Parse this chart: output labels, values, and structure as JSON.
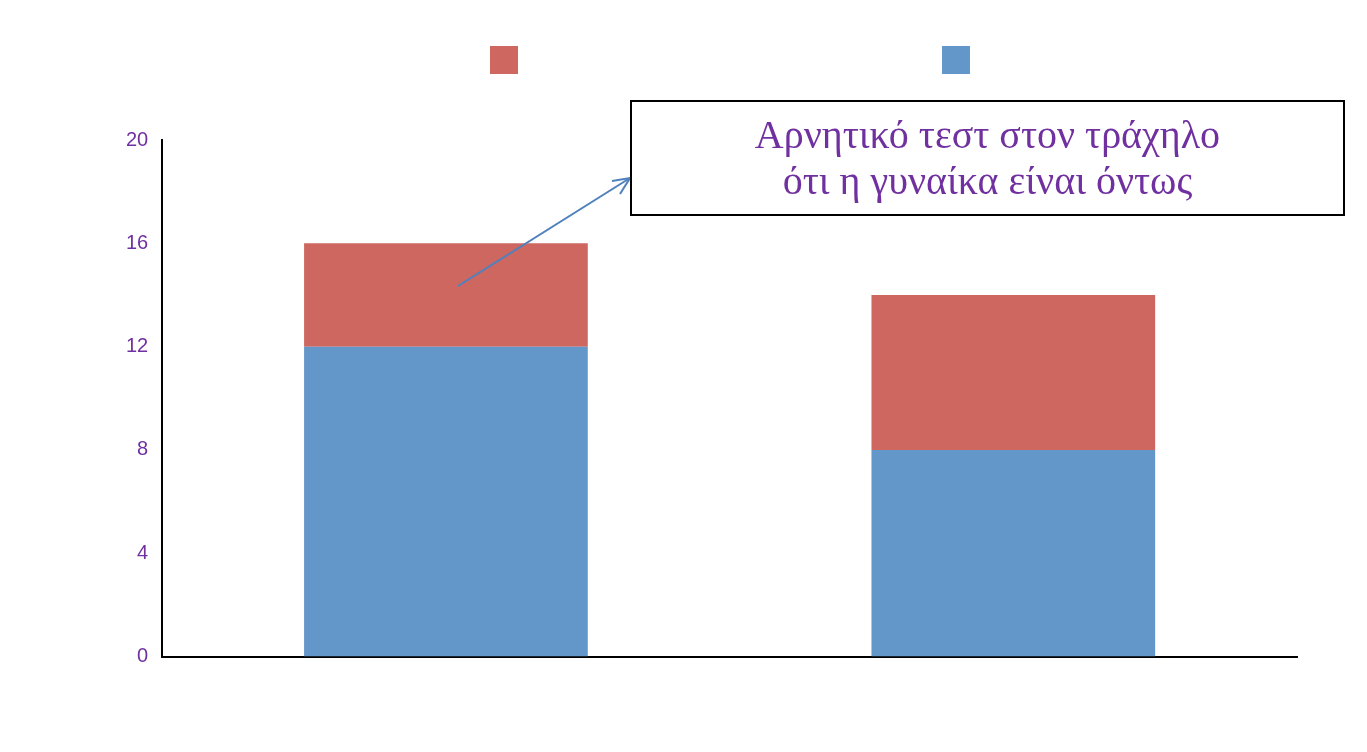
{
  "chart_data": {
    "type": "bar",
    "stacked": true,
    "categories": [
      null,
      null
    ],
    "series": [
      {
        "color": "#6397c9",
        "values": [
          12,
          8
        ]
      },
      {
        "color": "#cd6760",
        "values": [
          4,
          6
        ]
      }
    ],
    "ylim": [
      0,
      20
    ],
    "yticks": [
      0,
      4,
      8,
      12,
      16,
      20
    ],
    "grid": false,
    "annotations": [
      "Αρνητικό τεστ στον τράχηλο\nότι η γυναίκα είναι όντως"
    ]
  }
}
